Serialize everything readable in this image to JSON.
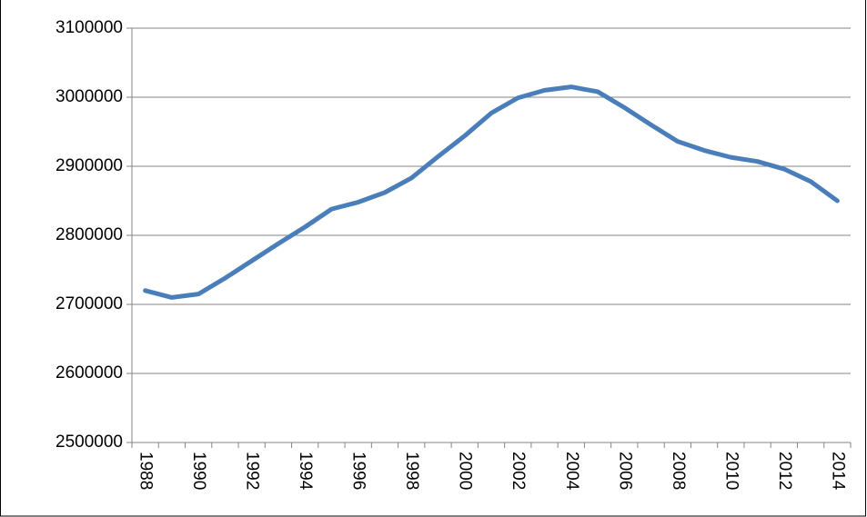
{
  "chart_data": {
    "type": "line",
    "categories": [
      "1988",
      null,
      "1990",
      null,
      "1992",
      null,
      "1994",
      null,
      "1996",
      null,
      "1998",
      null,
      "2000",
      null,
      "2002",
      null,
      "2004",
      null,
      "2006",
      null,
      "2008",
      null,
      "2010",
      null,
      "2012",
      null,
      "2014"
    ],
    "series": [
      {
        "color": "#4a7ebb",
        "values": [
          2720000,
          2710000,
          2715000,
          2738000,
          2763000,
          2788000,
          2812000,
          2838000,
          2848000,
          2862000,
          2883000,
          2914000,
          2944000,
          2977000,
          2999000,
          3010000,
          3015000,
          3008000,
          2985000,
          2960000,
          2936000,
          2923000,
          2913000,
          2907000,
          2896000,
          2878000,
          2850000
        ]
      }
    ],
    "ylim": [
      2500000,
      3100000
    ],
    "yticks": [
      2500000,
      2600000,
      2700000,
      2800000,
      2900000,
      3000000,
      3100000
    ],
    "grid": true
  }
}
